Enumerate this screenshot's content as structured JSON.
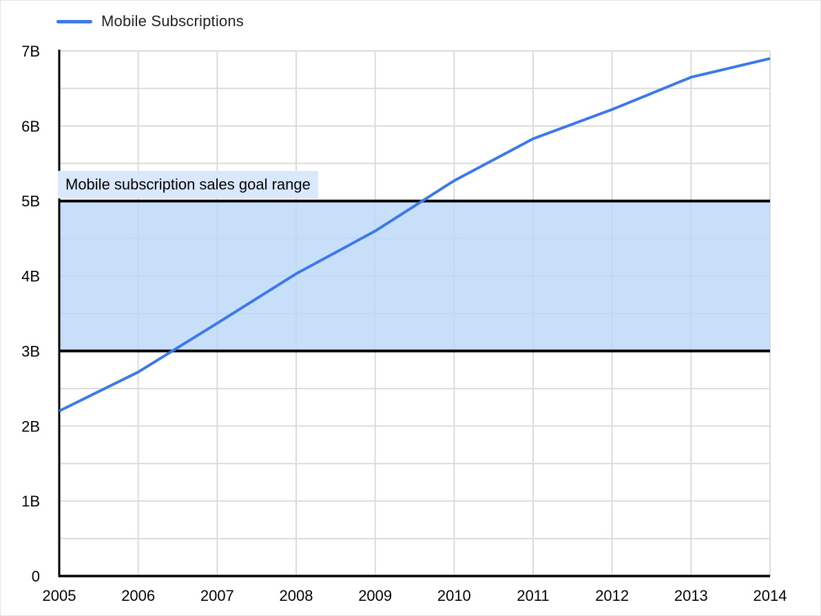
{
  "legend": {
    "label": "Mobile Subscriptions"
  },
  "chart_data": {
    "type": "line",
    "title": "",
    "xlabel": "",
    "ylabel": "",
    "unit": "billions of subscriptions",
    "categories": [
      "2005",
      "2006",
      "2007",
      "2008",
      "2009",
      "2010",
      "2011",
      "2012",
      "2013",
      "2014"
    ],
    "series": [
      {
        "name": "Mobile Subscriptions",
        "color": "#3d78e8",
        "values": [
          2.2,
          2.72,
          3.37,
          4.03,
          4.6,
          5.27,
          5.83,
          6.22,
          6.65,
          6.9
        ]
      }
    ],
    "ylim": [
      0,
      7
    ],
    "y_major_step": 1,
    "y_minor_step": 0.5,
    "y_tick_labels": [
      "0",
      "1B",
      "2B",
      "3B",
      "4B",
      "5B",
      "6B",
      "7B"
    ],
    "grid": true,
    "legend_position": "top-left",
    "band": {
      "from": 3,
      "to": 5,
      "label": "Mobile subscription sales goal range"
    }
  },
  "colors": {
    "series_blue": "#3d78e8",
    "grid": "#dbdbdb",
    "axis": "#000000",
    "band_fill": "#b9d7f6",
    "band_fill_opacity": "0.8",
    "band_border": "#000000",
    "band_label_bg": "#d9e8fc",
    "band_label_text": "#000000",
    "tick_text": "#000000",
    "legend_text": "#212121",
    "background": "#ffffff",
    "widget_border": "#e3e3e3"
  }
}
